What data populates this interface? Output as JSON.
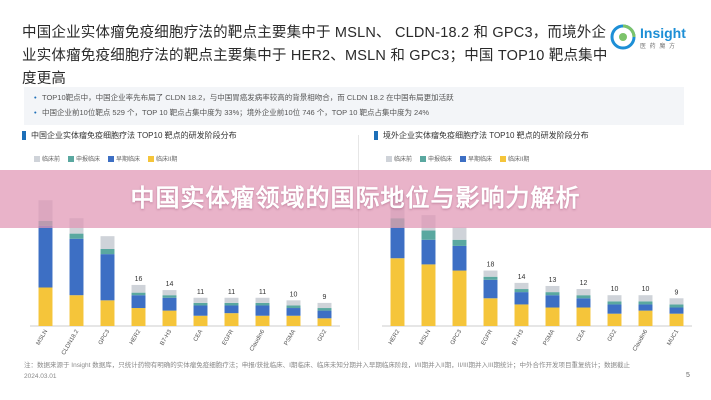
{
  "header": {
    "title": "中国企业实体瘤免疫细胞疗法的靶点主要集中于 MSLN、 CLDN-18.2 和 GPC3，而境外企业实体瘤免疫细胞疗法的靶点主要集中于 HER2、MSLN 和 GPC3；中国 TOP10 靶点集中度更高"
  },
  "logo": {
    "name": "Insight",
    "sub": "医 药 魔 方"
  },
  "bullets": [
    "TOP10靶点中，中国企业率先布局了 CLDN 18.2，与中国胃癌发病率较高的背景相吻合，而 CLDN 18.2 在中国布局更加活跃",
    "中国企业前10位靶点 529 个，TOP 10 靶点占集中度为 33%；境外企业前10位 746 个，TOP 10 靶点占集中度为 24%"
  ],
  "banner": {
    "text": "中国实体瘤领域的国际地位与影响力解析"
  },
  "footer": {
    "note": "注：数据来源于 Insight 数据库，只统计药物有明确的实体瘤免疫细胞疗法；申报/获批临床、I期临床、临床未知分期并入早期临床阶段，I/II期并入II期，II/III期并入III期统计；中外合作开发项目重复统计；数据截止 2024.03.01",
    "page": "5"
  },
  "colors": {
    "gray": "#cfd3d9",
    "teal": "#5aa8a0",
    "blue": "#3d6fc4",
    "yellow": "#f5c53a",
    "accent": "#1d6fb8"
  },
  "chart_data": [
    {
      "type": "bar",
      "title": "中国企业实体瘤免疫细胞疗法 TOP10 靶点的研发阶段分布",
      "categories": [
        "MSLN",
        "CLDN18.2",
        "GPC3",
        "HER2",
        "B7-H3",
        "CEA",
        "EGFR",
        "Claudin6",
        "PSMA",
        "GD2"
      ],
      "totals": [
        null,
        null,
        null,
        16,
        14,
        11,
        11,
        11,
        10,
        9
      ],
      "series": [
        {
          "name": "临床前",
          "color": "gray",
          "values": [
            8,
            6,
            5,
            3,
            2,
            2,
            2,
            2,
            2,
            2
          ]
        },
        {
          "name": "申报临床",
          "color": "teal",
          "values": [
            2,
            2,
            2,
            1,
            1,
            1,
            1,
            1,
            1,
            1
          ]
        },
        {
          "name": "早期临床",
          "color": "blue",
          "values": [
            24,
            22,
            18,
            5,
            5,
            4,
            3,
            4,
            3,
            3
          ]
        },
        {
          "name": "临床II期",
          "color": "yellow",
          "values": [
            15,
            12,
            10,
            7,
            6,
            4,
            5,
            4,
            4,
            3
          ]
        }
      ],
      "ylim": [
        0,
        60
      ]
    },
    {
      "type": "bar",
      "title": "境外企业实体瘤免疫细胞疗法 TOP10 靶点的研发阶段分布",
      "categories": [
        "HER2",
        "MSLN",
        "GPC3",
        "EGFR",
        "B7-H3",
        "PSMA",
        "CEA",
        "GD2",
        "Claudin6",
        "MUC1"
      ],
      "totals": [
        null,
        null,
        null,
        18,
        14,
        13,
        12,
        10,
        10,
        9
      ],
      "series": [
        {
          "name": "临床前",
          "color": "gray",
          "values": [
            8,
            5,
            4,
            2,
            2,
            2,
            2,
            2,
            2,
            2
          ]
        },
        {
          "name": "申报临床",
          "color": "teal",
          "values": [
            3,
            3,
            2,
            1,
            1,
            1,
            1,
            1,
            1,
            1
          ]
        },
        {
          "name": "早期临床",
          "color": "blue",
          "values": [
            10,
            8,
            8,
            6,
            4,
            4,
            3,
            3,
            2,
            2
          ]
        },
        {
          "name": "临床II期",
          "color": "yellow",
          "values": [
            22,
            20,
            18,
            9,
            7,
            6,
            6,
            4,
            5,
            4
          ]
        }
      ],
      "ylim": [
        0,
        50
      ]
    }
  ]
}
